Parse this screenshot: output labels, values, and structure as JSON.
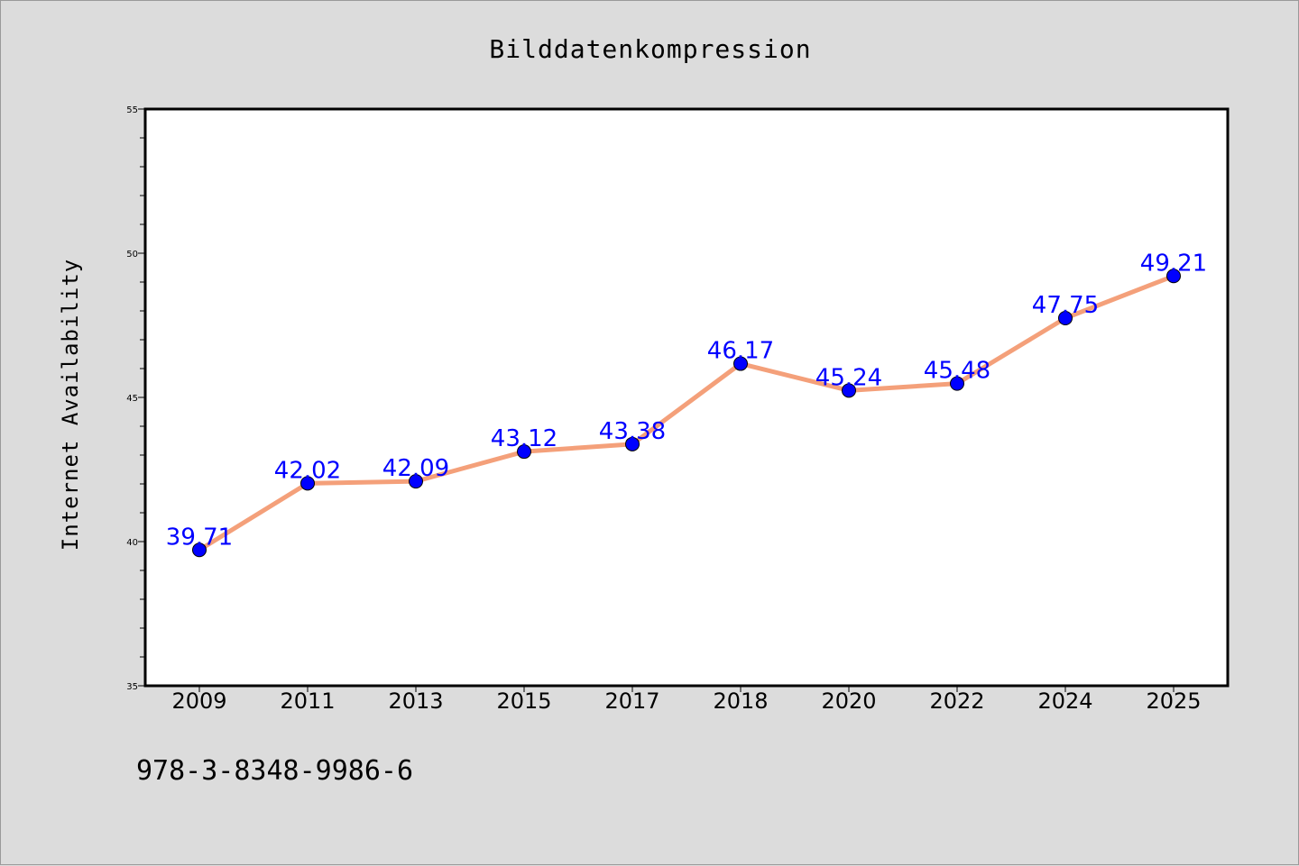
{
  "chart_data": {
    "type": "line",
    "title": "Bilddatenkompression",
    "xlabel": "",
    "ylabel": "Internet Availability",
    "categories": [
      "2009",
      "2011",
      "2013",
      "2015",
      "2017",
      "2018",
      "2020",
      "2022",
      "2024",
      "2025"
    ],
    "series": [
      {
        "values": [
          39.71,
          42.02,
          42.09,
          43.12,
          43.38,
          46.17,
          45.24,
          45.48,
          47.75,
          49.21
        ],
        "labels": [
          "39.71",
          "42.02",
          "42.09",
          "43.12",
          "43.38",
          "46.17",
          "45.24",
          "45.48",
          "47.75",
          "49.21"
        ],
        "line_color": "#f4a07a",
        "marker_color": "#0000ff"
      }
    ],
    "ylim": [
      35,
      55
    ],
    "yticks": [
      "35",
      "40",
      "45",
      "50",
      "55"
    ],
    "grid": false,
    "legend": "none"
  },
  "footer": {
    "isbn": "978-3-8348-9986-6"
  }
}
